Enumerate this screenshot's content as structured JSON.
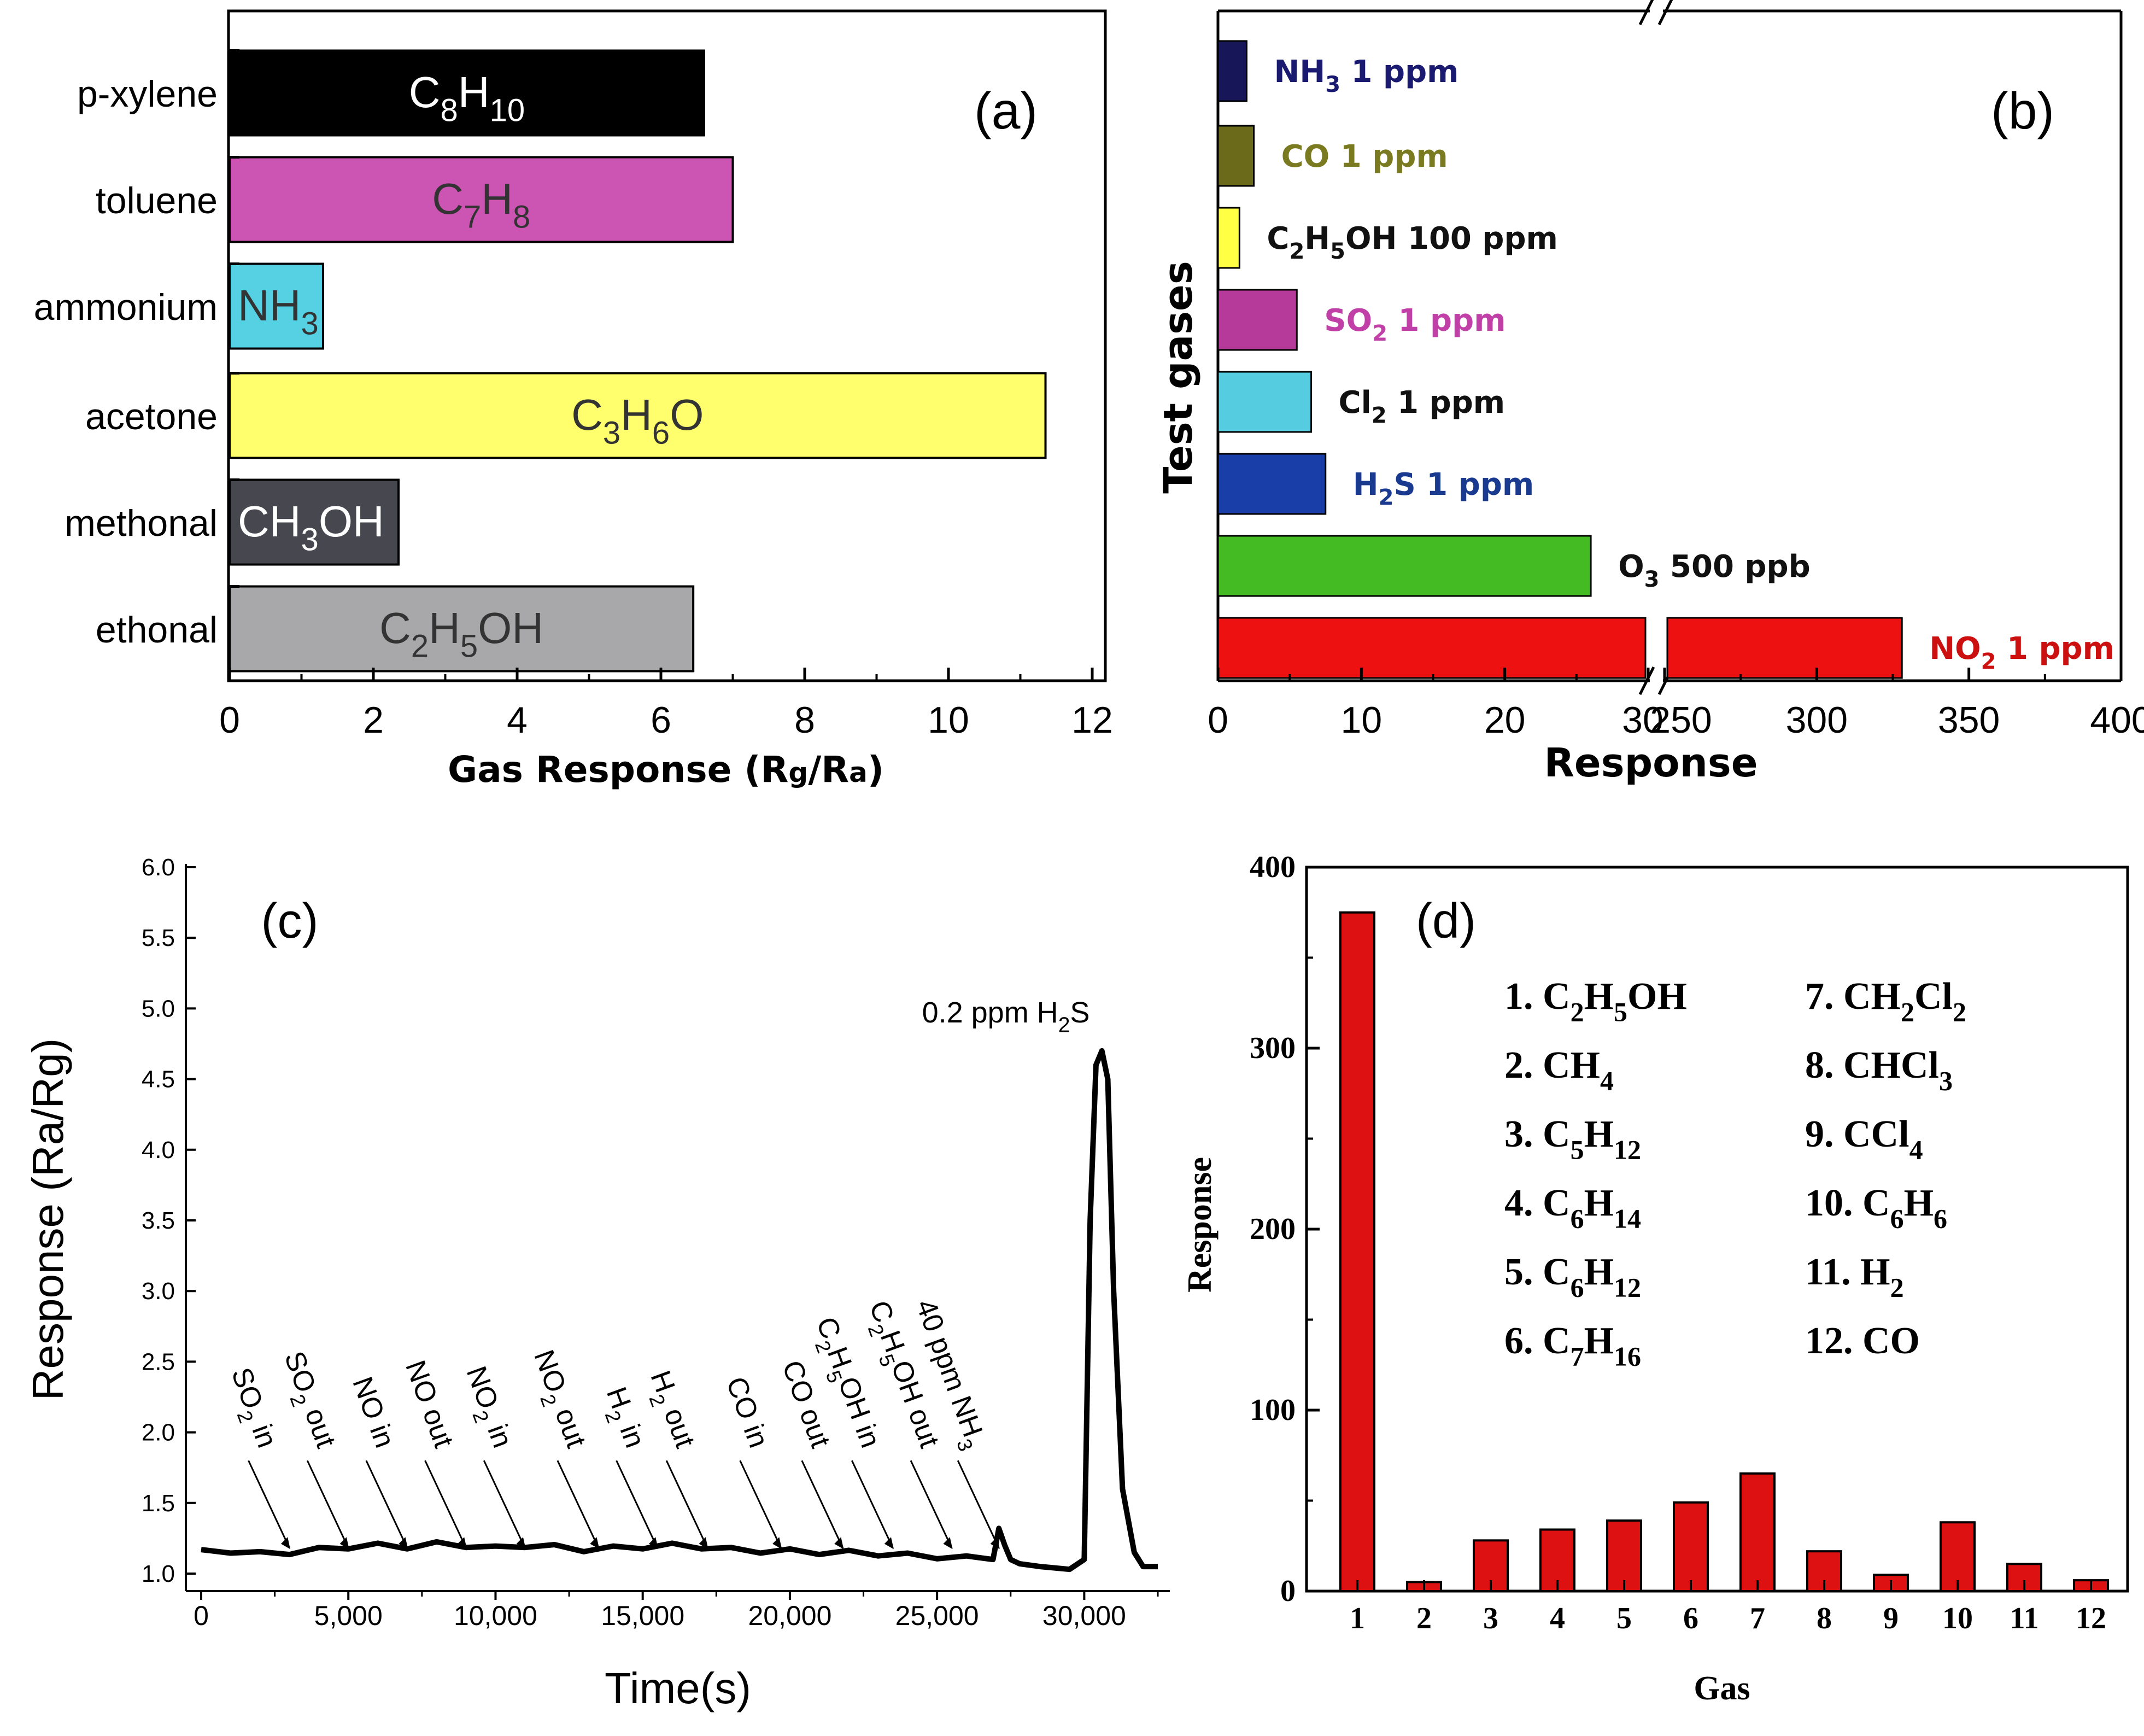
{
  "chart_data": [
    {
      "panel": "a",
      "type": "bar",
      "orientation": "horizontal",
      "panel_label": "(a)",
      "xlabel_parts": [
        "Gas Response (R",
        "g",
        "/R",
        "a",
        ")"
      ],
      "xlim": [
        0,
        12
      ],
      "xticks": [
        "0",
        "2",
        "4",
        "6",
        "8",
        "10",
        "12"
      ],
      "categories": [
        "p-xylene",
        "toluene",
        "ammonium",
        "acetone",
        "methonal",
        "ethonal"
      ],
      "values": [
        6.6,
        7.0,
        1.3,
        11.35,
        2.35,
        6.45
      ],
      "colors": [
        "#000000",
        "#cc55b4",
        "#55d1e3",
        "#ffff6e",
        "#474750",
        "#a8a8aa"
      ],
      "label_colors": [
        "#ffffff",
        "#333333",
        "#333333",
        "#333333",
        "#ffffff",
        "#333333"
      ],
      "formulas": [
        [
          [
            "C",
            ""
          ],
          [
            "8",
            "sub"
          ],
          [
            "H",
            ""
          ],
          [
            "10",
            "sub"
          ]
        ],
        [
          [
            "C",
            ""
          ],
          [
            "7",
            "sub"
          ],
          [
            "H",
            ""
          ],
          [
            "8",
            "sub"
          ]
        ],
        [
          [
            "NH",
            ""
          ],
          [
            "3",
            "sub"
          ]
        ],
        [
          [
            "C",
            ""
          ],
          [
            "3",
            "sub"
          ],
          [
            "H",
            ""
          ],
          [
            "6",
            "sub"
          ],
          [
            "O",
            ""
          ]
        ],
        [
          [
            "CH",
            ""
          ],
          [
            "3",
            "sub"
          ],
          [
            "OH",
            ""
          ]
        ],
        [
          [
            "C",
            ""
          ],
          [
            "2",
            "sub"
          ],
          [
            "H",
            ""
          ],
          [
            "5",
            "sub"
          ],
          [
            "OH",
            ""
          ]
        ]
      ]
    },
    {
      "panel": "b",
      "type": "bar",
      "orientation": "horizontal",
      "panel_label": "(b)",
      "xlabel": "Response",
      "ylabel": "Test gases",
      "axis_break": {
        "low": [
          0,
          30
        ],
        "high": [
          250,
          400
        ]
      },
      "xticks": [
        "0",
        "10",
        "20",
        "30",
        "250",
        "300",
        "350",
        "400"
      ],
      "values": [
        2,
        2.5,
        1.5,
        5.5,
        6.5,
        7.5,
        26,
        328
      ],
      "colors": [
        "#161658",
        "#6a6a1a",
        "#ffff44",
        "#b53a9a",
        "#55cce0",
        "#1a3ea8",
        "#44bb22",
        "#ee1111"
      ],
      "label_colors": [
        "#1a1a70",
        "#7a7a20",
        "#111111",
        "#c040a8",
        "#111111",
        "#1a3a90",
        "#111111",
        "#cc1010"
      ],
      "labels": [
        [
          [
            "NH",
            ""
          ],
          [
            "3",
            "sub"
          ],
          [
            " 1 ppm",
            ""
          ]
        ],
        [
          [
            "CO 1 ppm",
            ""
          ]
        ],
        [
          [
            "C",
            ""
          ],
          [
            "2",
            "sub"
          ],
          [
            "H",
            ""
          ],
          [
            "5",
            "sub"
          ],
          [
            "OH 100 ppm",
            ""
          ]
        ],
        [
          [
            "SO",
            ""
          ],
          [
            "2",
            "sub"
          ],
          [
            " 1 ppm",
            ""
          ]
        ],
        [
          [
            "Cl",
            ""
          ],
          [
            "2",
            "sub"
          ],
          [
            " 1 ppm",
            ""
          ]
        ],
        [
          [
            "H",
            ""
          ],
          [
            "2",
            "sub"
          ],
          [
            "S 1 ppm",
            ""
          ]
        ],
        [
          [
            "O",
            ""
          ],
          [
            "3",
            "sub"
          ],
          [
            " 500 ppb",
            ""
          ]
        ],
        [
          [
            "NO",
            ""
          ],
          [
            "2",
            "sub"
          ],
          [
            " 1 ppm",
            ""
          ]
        ]
      ]
    },
    {
      "panel": "c",
      "type": "line",
      "panel_label": "(c)",
      "xlabel": "Time(s)",
      "ylabel": "Response  (Ra/Rg)",
      "xlim": [
        0,
        32500
      ],
      "ylim": [
        1.0,
        6.0
      ],
      "xticks": [
        "0",
        "5,000",
        "10,000",
        "15,000",
        "20,000",
        "25,000",
        "30,000"
      ],
      "yticks": [
        "1.0",
        "1.5",
        "2.0",
        "2.5",
        "3.0",
        "3.5",
        "4.0",
        "4.5",
        "5.0",
        "5.5",
        "6.0"
      ],
      "x": [
        0,
        1000,
        2000,
        3000,
        4000,
        5000,
        6000,
        7000,
        8000,
        9000,
        10000,
        11000,
        12000,
        13000,
        14000,
        15000,
        16000,
        17000,
        18000,
        19000,
        20000,
        21000,
        22000,
        23000,
        24000,
        25000,
        26000,
        26900,
        27100,
        27300,
        27500,
        27800,
        28500,
        29500,
        30000,
        30200,
        30400,
        30600,
        30800,
        31000,
        31300,
        31700,
        32000,
        32500
      ],
      "y": [
        1.17,
        1.16,
        1.14,
        1.15,
        1.17,
        1.19,
        1.2,
        1.19,
        1.21,
        1.2,
        1.18,
        1.2,
        1.19,
        1.17,
        1.18,
        1.19,
        1.2,
        1.19,
        1.17,
        1.16,
        1.16,
        1.15,
        1.15,
        1.14,
        1.13,
        1.12,
        1.11,
        1.1,
        1.32,
        1.2,
        1.1,
        1.07,
        1.05,
        1.03,
        1.1,
        3.5,
        4.6,
        4.7,
        4.5,
        3.0,
        1.6,
        1.15,
        1.05,
        1.05
      ],
      "annotations": [
        {
          "x": 3000,
          "parts": [
            [
              "SO",
              ""
            ],
            [
              "2",
              "sub"
            ],
            [
              " in",
              ""
            ]
          ]
        },
        {
          "x": 5000,
          "parts": [
            [
              "SO",
              ""
            ],
            [
              "2",
              "sub"
            ],
            [
              " out",
              ""
            ]
          ]
        },
        {
          "x": 7000,
          "parts": [
            [
              "NO in",
              ""
            ]
          ]
        },
        {
          "x": 9000,
          "parts": [
            [
              "NO out",
              ""
            ]
          ]
        },
        {
          "x": 11000,
          "parts": [
            [
              "NO",
              ""
            ],
            [
              "2",
              "sub"
            ],
            [
              " in",
              ""
            ]
          ]
        },
        {
          "x": 13500,
          "parts": [
            [
              "NO",
              ""
            ],
            [
              "2",
              "sub"
            ],
            [
              " out",
              ""
            ]
          ]
        },
        {
          "x": 15500,
          "parts": [
            [
              "H",
              ""
            ],
            [
              "2",
              "sub"
            ],
            [
              " in",
              ""
            ]
          ]
        },
        {
          "x": 17200,
          "parts": [
            [
              "H",
              ""
            ],
            [
              "2",
              "sub"
            ],
            [
              " out",
              ""
            ]
          ]
        },
        {
          "x": 19700,
          "parts": [
            [
              "CO in",
              ""
            ]
          ]
        },
        {
          "x": 21800,
          "parts": [
            [
              "CO out",
              ""
            ]
          ]
        },
        {
          "x": 23500,
          "parts": [
            [
              "C",
              ""
            ],
            [
              "2",
              "sub"
            ],
            [
              "H",
              ""
            ],
            [
              "5",
              "sub"
            ],
            [
              "OH in",
              ""
            ]
          ]
        },
        {
          "x": 25500,
          "parts": [
            [
              "C",
              ""
            ],
            [
              "2",
              "sub"
            ],
            [
              "H",
              ""
            ],
            [
              "5",
              "sub"
            ],
            [
              "OH out",
              ""
            ]
          ]
        },
        {
          "x": 27100,
          "parts": [
            [
              "40 ppm NH",
              ""
            ],
            [
              "3",
              "sub"
            ]
          ]
        }
      ],
      "peak_label": [
        [
          "0.2 ppm H",
          ""
        ],
        [
          "2",
          "sub"
        ],
        [
          "S",
          ""
        ]
      ]
    },
    {
      "panel": "d",
      "type": "bar",
      "panel_label": "(d)",
      "xlabel": "Gas",
      "ylabel": "Response",
      "ylim": [
        0,
        400
      ],
      "yticks": [
        "0",
        "100",
        "200",
        "300",
        "400"
      ],
      "categories": [
        "1",
        "2",
        "3",
        "4",
        "5",
        "6",
        "7",
        "8",
        "9",
        "10",
        "11",
        "12"
      ],
      "values": [
        375,
        5,
        28,
        34,
        39,
        49,
        65,
        22,
        9,
        38,
        15,
        6
      ],
      "bar_color": "#dd1111",
      "legend": [
        [
          [
            "1. C",
            ""
          ],
          [
            "2",
            "sub"
          ],
          [
            "H",
            ""
          ],
          [
            "5",
            "sub"
          ],
          [
            "OH",
            ""
          ]
        ],
        [
          [
            "2. CH",
            ""
          ],
          [
            "4",
            "sub"
          ]
        ],
        [
          [
            "3. C",
            ""
          ],
          [
            "5",
            "sub"
          ],
          [
            "H",
            ""
          ],
          [
            "12",
            "sub"
          ]
        ],
        [
          [
            "4. C",
            ""
          ],
          [
            "6",
            "sub"
          ],
          [
            "H",
            ""
          ],
          [
            "14",
            "sub"
          ]
        ],
        [
          [
            "5. C",
            ""
          ],
          [
            "6",
            "sub"
          ],
          [
            "H",
            ""
          ],
          [
            "12",
            "sub"
          ]
        ],
        [
          [
            "6. C",
            ""
          ],
          [
            "7",
            "sub"
          ],
          [
            "H",
            ""
          ],
          [
            "16",
            "sub"
          ]
        ],
        [
          [
            "7. CH",
            ""
          ],
          [
            "2",
            "sub"
          ],
          [
            "Cl",
            ""
          ],
          [
            "2",
            "sub"
          ]
        ],
        [
          [
            "8. CHCl",
            ""
          ],
          [
            "3",
            "sub"
          ]
        ],
        [
          [
            "9. CCl",
            ""
          ],
          [
            "4",
            "sub"
          ]
        ],
        [
          [
            "10. C",
            ""
          ],
          [
            "6",
            "sub"
          ],
          [
            "H",
            ""
          ],
          [
            "6",
            "sub"
          ]
        ],
        [
          [
            "11. H",
            ""
          ],
          [
            "2",
            "sub"
          ]
        ],
        [
          [
            "12. CO",
            ""
          ]
        ]
      ]
    }
  ]
}
